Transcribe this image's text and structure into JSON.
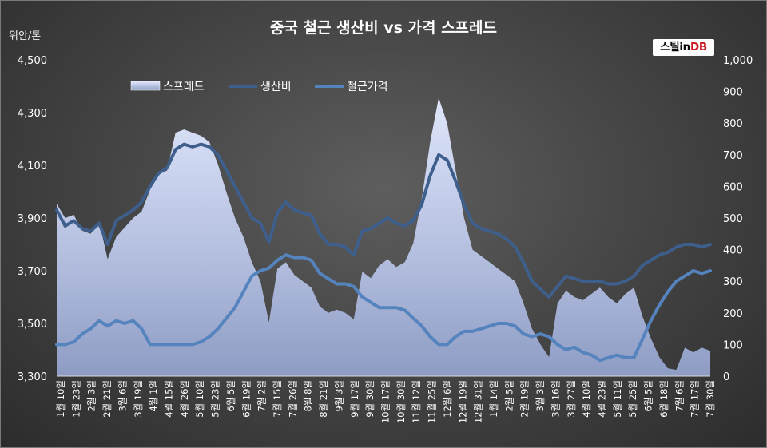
{
  "chart_data": {
    "type": "area+line",
    "title": "중국 철근 생산비 vs 가격 스프레드",
    "y_left_unit": "위안/톤",
    "y_left_ticks": [
      "4,500",
      "4,300",
      "4,100",
      "3,900",
      "3,700",
      "3,500",
      "3,300"
    ],
    "y_left_range": [
      3300,
      4500
    ],
    "y_right_ticks": [
      "1,000",
      "900",
      "800",
      "700",
      "600",
      "500",
      "400",
      "300",
      "200",
      "100",
      "0"
    ],
    "y_right_range": [
      0,
      1000
    ],
    "x_tick_labels": [
      "1월 10일",
      "1월 23일",
      "2월 3일",
      "2월 21일",
      "3월 6일",
      "3월 19일",
      "4월 1일",
      "4월 15일",
      "4월 26일",
      "5월 10일",
      "5월 23일",
      "6월 5일",
      "6월 19일",
      "7월 2일",
      "7월 15일",
      "7월 26일",
      "8월 8일",
      "8월 21일",
      "9월 3일",
      "9월 17일",
      "9월 30일",
      "10월 17일",
      "10월 30일",
      "11월 12일",
      "11월 25일",
      "12월 6일",
      "12월 19일",
      "12월 31일",
      "1월 14일",
      "2월 5일",
      "2월 19일",
      "3월 3일",
      "3월 16일",
      "3월 27일",
      "4월 10일",
      "4월 23일",
      "5월 11일",
      "5월 25일",
      "6월 5일",
      "6월 18일",
      "7월 6일",
      "7월 17일",
      "7월 30일"
    ],
    "legend": [
      "스프레드",
      "생산비",
      "철근가격"
    ],
    "legend_position": "top",
    "grid": false,
    "series": [
      {
        "name": "스프레드",
        "style": "area",
        "axis": "right",
        "color": "#c9d2ec",
        "values": [
          545,
          500,
          510,
          460,
          450,
          490,
          370,
          440,
          470,
          500,
          520,
          590,
          640,
          650,
          770,
          780,
          770,
          760,
          740,
          670,
          580,
          500,
          440,
          360,
          300,
          170,
          340,
          360,
          320,
          300,
          280,
          220,
          200,
          210,
          200,
          180,
          330,
          310,
          350,
          370,
          345,
          360,
          420,
          560,
          740,
          880,
          800,
          650,
          500,
          400,
          380,
          360,
          340,
          320,
          300,
          230,
          150,
          100,
          60,
          230,
          270,
          250,
          240,
          260,
          280,
          250,
          230,
          260,
          280,
          190,
          120,
          60,
          25,
          20,
          90,
          75,
          90,
          80
        ]
      },
      {
        "name": "생산비",
        "style": "line",
        "axis": "left",
        "color": "#3e5f8c",
        "values": [
          3930,
          3870,
          3890,
          3860,
          3850,
          3880,
          3800,
          3890,
          3910,
          3930,
          3960,
          4020,
          4070,
          4090,
          4160,
          4180,
          4170,
          4180,
          4170,
          4140,
          4080,
          4020,
          3960,
          3900,
          3880,
          3810,
          3920,
          3960,
          3930,
          3920,
          3910,
          3840,
          3800,
          3800,
          3790,
          3760,
          3850,
          3860,
          3880,
          3900,
          3880,
          3870,
          3890,
          3950,
          4060,
          4140,
          4120,
          4040,
          3950,
          3880,
          3860,
          3850,
          3840,
          3820,
          3790,
          3730,
          3660,
          3630,
          3600,
          3640,
          3680,
          3670,
          3660,
          3660,
          3660,
          3650,
          3650,
          3660,
          3680,
          3720,
          3740,
          3760,
          3770,
          3790,
          3800,
          3800,
          3790,
          3800
        ]
      },
      {
        "name": "철근가격",
        "style": "line",
        "axis": "left",
        "color": "#5583be",
        "values": [
          3420,
          3420,
          3430,
          3460,
          3480,
          3510,
          3490,
          3510,
          3500,
          3510,
          3480,
          3420,
          3420,
          3420,
          3420,
          3420,
          3420,
          3430,
          3450,
          3480,
          3520,
          3560,
          3620,
          3680,
          3700,
          3710,
          3740,
          3760,
          3750,
          3750,
          3740,
          3690,
          3670,
          3650,
          3650,
          3640,
          3600,
          3580,
          3560,
          3560,
          3560,
          3550,
          3520,
          3490,
          3450,
          3420,
          3420,
          3450,
          3470,
          3470,
          3480,
          3490,
          3500,
          3500,
          3490,
          3460,
          3450,
          3460,
          3450,
          3420,
          3400,
          3410,
          3390,
          3380,
          3360,
          3370,
          3380,
          3370,
          3370,
          3440,
          3510,
          3570,
          3620,
          3660,
          3680,
          3700,
          3690,
          3700
        ]
      }
    ]
  },
  "logo": {
    "part1": "스틸in",
    "part2": "DB"
  }
}
